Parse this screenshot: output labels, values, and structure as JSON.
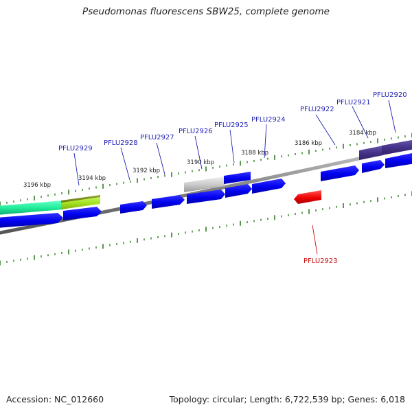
{
  "title": "Pseudomonas fluorescens SBW25, complete genome",
  "footer": {
    "accession": "Accession: NC_012660",
    "summary": "Topology: circular; Length: 6,722,539 bp; Genes: 6,018"
  },
  "colors": {
    "forward_gene": "#0000ee",
    "reverse_gene": "#ee0000",
    "backbone": "#808080",
    "ticks": "#2e7d1f",
    "label_forward": "#1f1fb4",
    "label_reverse": "#cc1111",
    "scale_text": "#222222"
  },
  "scale_labels": [
    "3196 kbp",
    "3194 kbp",
    "3192 kbp",
    "3190 kbp",
    "3188 kbp",
    "3186 kbp",
    "3184 kbp"
  ],
  "gene_labels": [
    {
      "name": "PFLU2929",
      "strand": "forward"
    },
    {
      "name": "PFLU2928",
      "strand": "forward"
    },
    {
      "name": "PFLU2927",
      "strand": "forward"
    },
    {
      "name": "PFLU2926",
      "strand": "forward"
    },
    {
      "name": "PFLU2925",
      "strand": "forward"
    },
    {
      "name": "PFLU2924",
      "strand": "forward"
    },
    {
      "name": "PFLU2922",
      "strand": "forward"
    },
    {
      "name": "PFLU2921",
      "strand": "forward"
    },
    {
      "name": "PFLU2920",
      "strand": "forward"
    },
    {
      "name": "PFLU2923",
      "strand": "reverse"
    }
  ]
}
